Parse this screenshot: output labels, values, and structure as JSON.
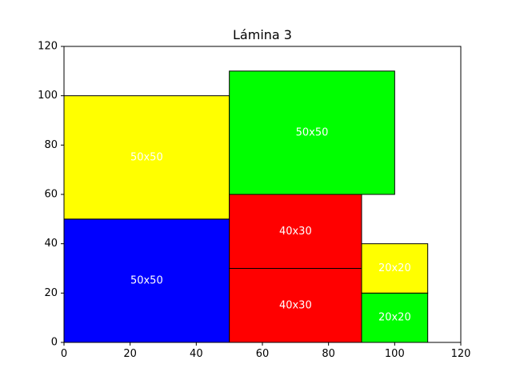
{
  "chart_data": {
    "type": "bar",
    "title": "Lámina 3",
    "xlabel": "",
    "ylabel": "",
    "xlim": [
      0,
      120
    ],
    "ylim": [
      0,
      120
    ],
    "xticks": [
      0,
      20,
      40,
      60,
      80,
      100,
      120
    ],
    "yticks": [
      0,
      20,
      40,
      60,
      80,
      100,
      120
    ],
    "grid": false,
    "rectangles": [
      {
        "label": "50x50",
        "x": 0,
        "y": 0,
        "width": 50,
        "height": 50,
        "color": "#0000ff"
      },
      {
        "label": "50x50",
        "x": 0,
        "y": 50,
        "width": 50,
        "height": 50,
        "color": "#ffff00"
      },
      {
        "label": "50x50",
        "x": 50,
        "y": 60,
        "width": 50,
        "height": 50,
        "color": "#00ff00"
      },
      {
        "label": "40x30",
        "x": 50,
        "y": 0,
        "width": 40,
        "height": 30,
        "color": "#ff0000"
      },
      {
        "label": "40x30",
        "x": 50,
        "y": 30,
        "width": 40,
        "height": 30,
        "color": "#ff0000"
      },
      {
        "label": "20x20",
        "x": 90,
        "y": 0,
        "width": 20,
        "height": 20,
        "color": "#00ff00"
      },
      {
        "label": "20x20",
        "x": 90,
        "y": 20,
        "width": 20,
        "height": 20,
        "color": "#ffff00"
      }
    ]
  }
}
